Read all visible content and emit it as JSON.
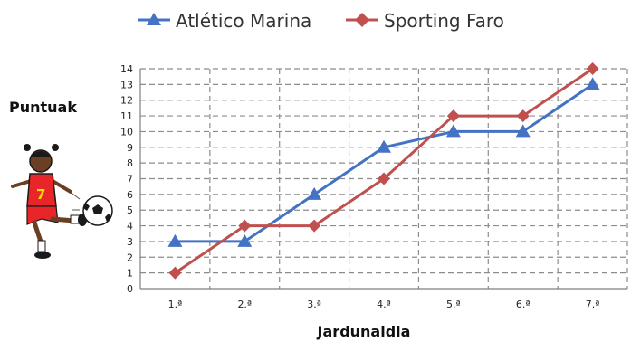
{
  "chart_data": {
    "type": "line",
    "categories": [
      "1.ª",
      "2.ª",
      "3.ª",
      "4.ª",
      "5.ª",
      "6.ª",
      "7.ª"
    ],
    "series": [
      {
        "name": "Atlético Marina",
        "values": [
          3,
          3,
          6,
          9,
          10,
          10,
          13
        ],
        "color": "#4472C4",
        "marker": "triangle"
      },
      {
        "name": "Sporting Faro",
        "values": [
          1,
          4,
          4,
          7,
          11,
          11,
          14
        ],
        "color": "#C0504D",
        "marker": "diamond"
      }
    ],
    "xlabel": "Jardunaldia",
    "ylabel": "Puntuak",
    "ylim": [
      0,
      14
    ],
    "yticks": [
      0,
      1,
      2,
      3,
      4,
      5,
      6,
      7,
      8,
      9,
      10,
      11,
      12,
      13,
      14
    ],
    "grid": true,
    "legend": "top",
    "decoration": "girl-kicking-ball-icon"
  }
}
